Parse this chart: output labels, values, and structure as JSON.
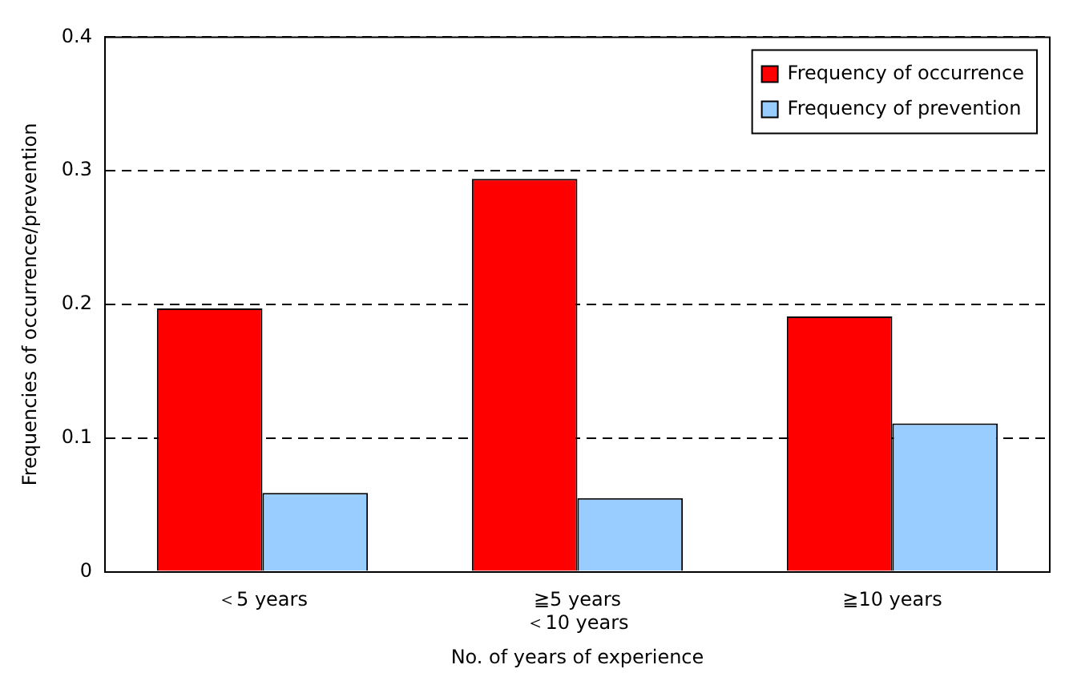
{
  "chart_data": {
    "type": "bar",
    "xlabel": "No. of years of experience",
    "ylabel": "Frequencies of occurrence/prevention",
    "categories": [
      "＜5 years",
      "≧5 years\n＜10 years",
      "≧10 years"
    ],
    "series": [
      {
        "name": "Frequency of occurrence",
        "color": "#ff0000",
        "values": [
          0.197,
          0.294,
          0.191
        ]
      },
      {
        "name": "Frequency of prevention",
        "color": "#99ccff",
        "values": [
          0.059,
          0.055,
          0.111
        ]
      }
    ],
    "ylim": [
      0,
      0.4
    ],
    "yticks": [
      0,
      0.1,
      0.2,
      0.3,
      0.4
    ],
    "grid": "y",
    "legend": "top right"
  }
}
